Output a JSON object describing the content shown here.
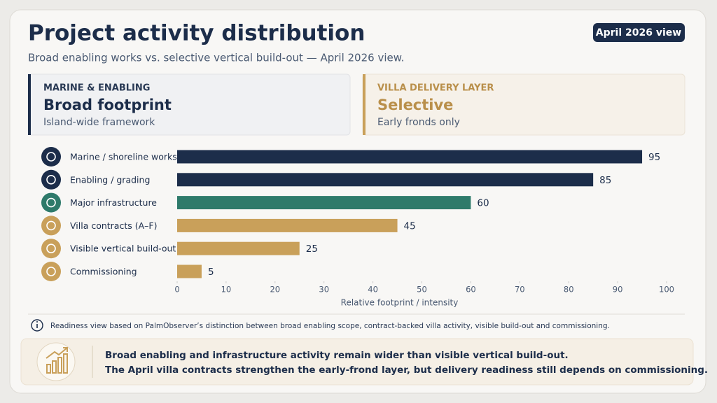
{
  "header": {
    "title": "Project activity distribution",
    "subtitle": "Broad enabling works vs. selective vertical build-out — April 2026 view.",
    "badge": "April 2026 view"
  },
  "cards": [
    {
      "eyebrow": "MARINE & ENABLING",
      "title": "Broad footprint",
      "subtitle": "Island-wide framework"
    },
    {
      "eyebrow": "VILLA DELIVERY LAYER",
      "title": "Selective",
      "subtitle": "Early fronds only"
    }
  ],
  "chart_data": {
    "type": "bar",
    "orientation": "horizontal",
    "categories": [
      "Marine / shoreline works",
      "Enabling / grading",
      "Major infrastructure",
      "Villa contracts (A–F)",
      "Visible vertical build-out",
      "Commissioning"
    ],
    "values": [
      95,
      85,
      60,
      45,
      25,
      5
    ],
    "colors": [
      "#1c2d4a",
      "#1c2d4a",
      "#2e7a6a",
      "#c9a05a",
      "#c9a05a",
      "#c9a05a"
    ],
    "xlabel": "Relative footprint / intensity",
    "xlim": [
      0,
      100
    ],
    "xticks": [
      0,
      10,
      20,
      30,
      40,
      50,
      60,
      70,
      80,
      90,
      100
    ]
  },
  "note": "Readiness view based on PalmObserver’s distinction between broad enabling scope, contract-backed villa activity, visible build-out and commissioning.",
  "callout": {
    "lines": [
      "Broad enabling and infrastructure activity remain wider than visible vertical build-out.",
      "The April villa contracts strengthen the early-frond layer, but delivery readiness still depends on commissioning."
    ]
  }
}
